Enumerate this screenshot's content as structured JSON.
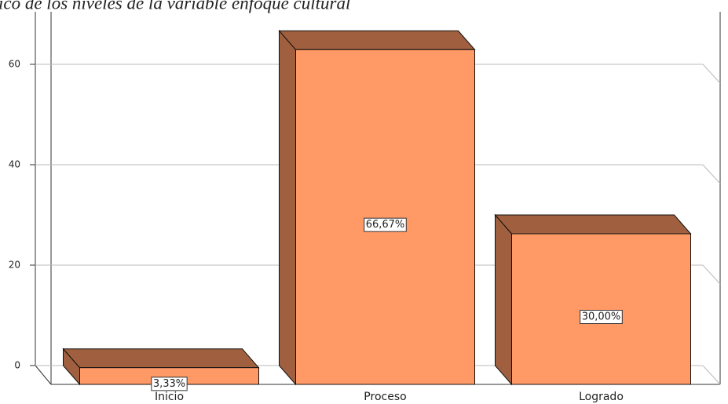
{
  "chart_data": {
    "type": "bar3d",
    "title": "ico de los niveles de la variable enfoque cultural",
    "categories": [
      "Inicio",
      "Proceso",
      "Logrado"
    ],
    "values": [
      3.33,
      66.67,
      30
    ],
    "value_labels": [
      "3,33%",
      "66,67%",
      "30,00%"
    ],
    "color": "#ff9966",
    "side_color": "#a05f3e",
    "ylim": [
      0,
      70
    ],
    "yticks": [
      0,
      20,
      40,
      60
    ],
    "grid": true
  }
}
